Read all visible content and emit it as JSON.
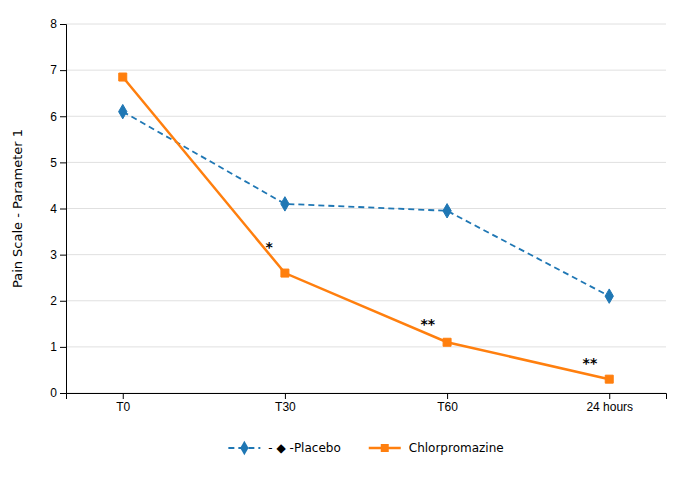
{
  "chart_data": {
    "type": "line",
    "y_label": "Pain Scale - Parameter 1",
    "categories": [
      "T0",
      "T30",
      "T60",
      "24 hours"
    ],
    "series": [
      {
        "name": "- ◆ -Placebo",
        "values": [
          6.1,
          4.1,
          3.95,
          2.1
        ],
        "marker": "diamond",
        "line_style": "dashed"
      },
      {
        "name": "Chlorpromazine",
        "values": [
          6.85,
          2.6,
          1.1,
          0.3
        ],
        "marker": "square",
        "line_style": "solid"
      }
    ],
    "annotations": [
      {
        "text": "*",
        "x": "T30",
        "y": 3.05
      },
      {
        "text": "**",
        "x": "T60",
        "y": 1.38
      },
      {
        "text": "**",
        "x": "24 hours",
        "y": 0.55
      }
    ],
    "ylim": [
      0,
      8
    ],
    "yticks": [
      0,
      1,
      2,
      3,
      4,
      5,
      6,
      7,
      8
    ],
    "grid": true,
    "legend": "bottom"
  }
}
